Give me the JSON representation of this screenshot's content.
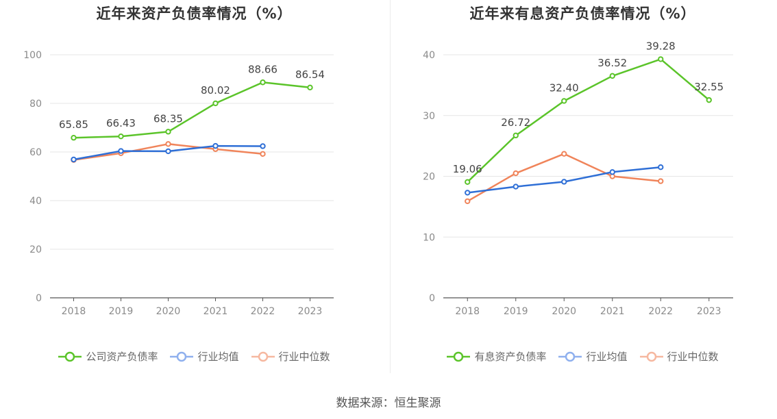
{
  "footer": "数据来源：恒生聚源",
  "chart_data": [
    {
      "type": "line",
      "title": "近年来资产负债率情况（%）",
      "categories": [
        "2018",
        "2019",
        "2020",
        "2021",
        "2022",
        "2023"
      ],
      "ylim": [
        0,
        100
      ],
      "yticks": [
        0,
        20,
        40,
        60,
        80,
        100
      ],
      "grid": true,
      "legend_position": "bottom",
      "series": [
        {
          "name": "公司资产负债率",
          "color": "#5bc42a",
          "values": [
            65.85,
            66.43,
            68.35,
            80.02,
            88.66,
            86.54
          ],
          "labels": [
            "65.85",
            "66.43",
            "68.35",
            "80.02",
            "88.66",
            "86.54"
          ]
        },
        {
          "name": "行业均值",
          "color": "#2f6fd6",
          "values": [
            56.9,
            60.4,
            60.3,
            62.5,
            62.4,
            null
          ]
        },
        {
          "name": "行业中位数",
          "color": "#f0845a",
          "values": [
            56.7,
            59.5,
            63.3,
            61.2,
            59.2,
            null
          ]
        }
      ],
      "legend_colors": [
        "#5bc42a",
        "#8fb0ee",
        "#f6b8a0"
      ]
    },
    {
      "type": "line",
      "title": "近年来有息资产负债率情况（%）",
      "categories": [
        "2018",
        "2019",
        "2020",
        "2021",
        "2022",
        "2023"
      ],
      "ylim": [
        0,
        40
      ],
      "yticks": [
        0,
        10,
        20,
        30,
        40
      ],
      "grid": true,
      "legend_position": "bottom",
      "series": [
        {
          "name": "有息资产负债率",
          "color": "#5bc42a",
          "values": [
            19.06,
            26.72,
            32.4,
            36.52,
            39.28,
            32.55
          ],
          "labels": [
            "19.06",
            "26.72",
            "32.40",
            "36.52",
            "39.28",
            "32.55"
          ]
        },
        {
          "name": "行业均值",
          "color": "#2f6fd6",
          "values": [
            17.3,
            18.3,
            19.1,
            20.7,
            21.5,
            null
          ]
        },
        {
          "name": "行业中位数",
          "color": "#f0845a",
          "values": [
            15.9,
            20.5,
            23.7,
            20.0,
            19.2,
            null
          ]
        }
      ],
      "legend_colors": [
        "#5bc42a",
        "#8fb0ee",
        "#f6b8a0"
      ]
    }
  ]
}
